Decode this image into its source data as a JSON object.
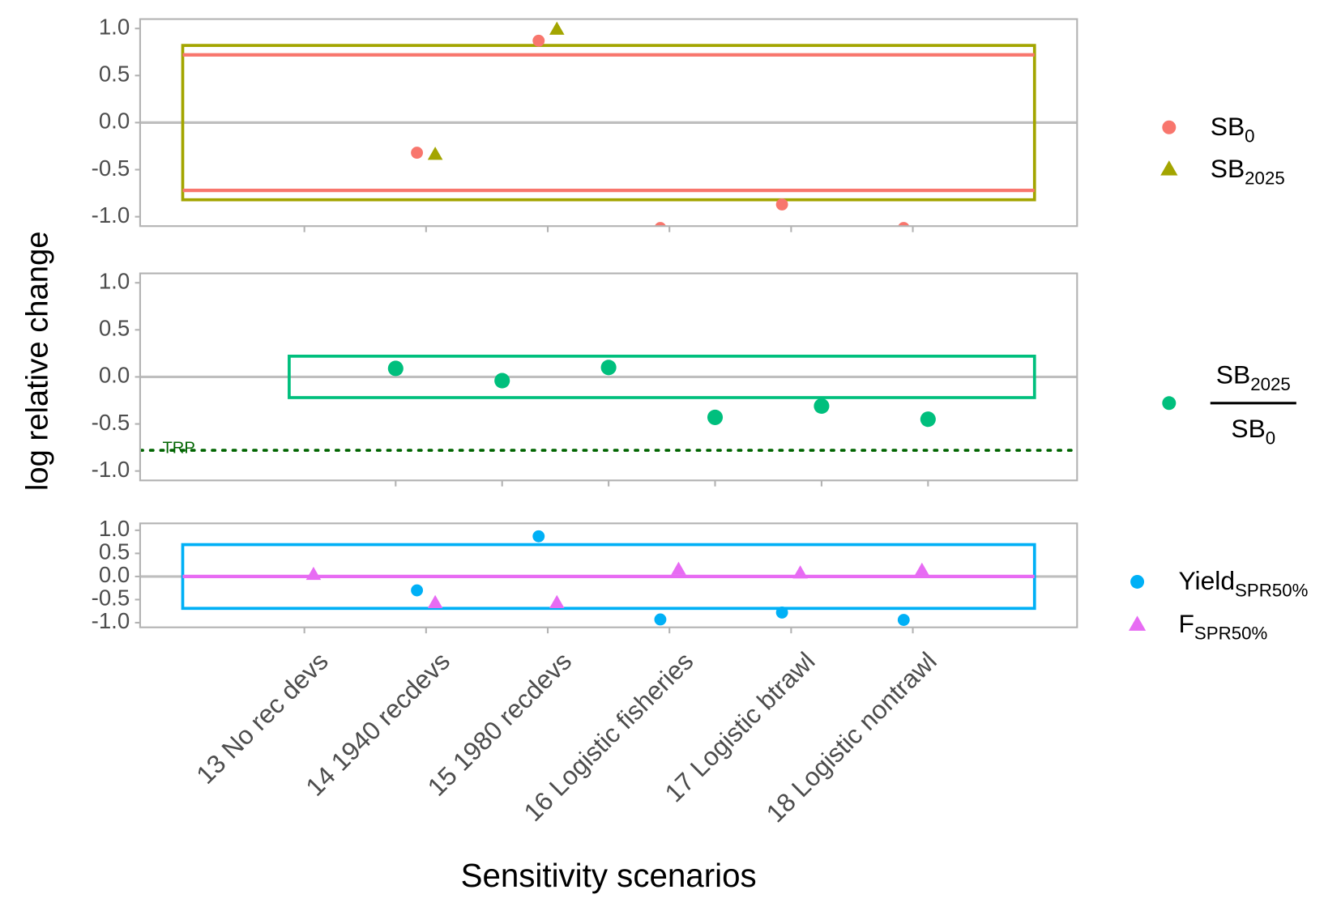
{
  "chart_data": [
    {
      "type": "scatter",
      "ylim": [
        -1.1,
        1.1
      ],
      "yticks": [
        {
          "value": 1,
          "label": "1.0"
        },
        0.5,
        {
          "value": 0,
          "label": "0.0"
        },
        -0.5,
        {
          "value": -1,
          "label": "-1.0"
        }
      ],
      "xlim": [
        -1.35,
        6.35
      ],
      "series": [
        {
          "name": "SB",
          "name_sub": "0",
          "color": "#F8766D",
          "marker": "circle",
          "values": [
            null,
            -0.32,
            0.87,
            -1.12,
            -0.87,
            -1.12
          ]
        },
        {
          "name": "SB",
          "name_sub": "2025",
          "color": "#A3A500",
          "marker": "triangle",
          "values": [
            null,
            -0.34,
            0.99,
            null,
            null,
            null
          ]
        }
      ],
      "bands": [
        {
          "x": [
            -1,
            6
          ],
          "y": [
            -0.82,
            0.82
          ],
          "color": "#A3A500"
        }
      ],
      "hlines": [
        {
          "y": 0.72,
          "color": "#F8766D"
        },
        {
          "y": -0.72,
          "color": "#F8766D"
        }
      ]
    },
    {
      "type": "scatter",
      "ylabel": "log relative change",
      "ylim": [
        -1.1,
        1.1
      ],
      "yticks": [
        {
          "value": 1,
          "label": "1.0"
        },
        0.5,
        {
          "value": 0,
          "label": "0.0"
        },
        -0.5,
        {
          "value": -1,
          "label": "-1.0"
        }
      ],
      "xlim": [
        -2.4,
        6.4
      ],
      "series": [
        {
          "name": "SB",
          "name_sub": "2025",
          "name_denominator": "SB",
          "name_denominator_sub": "0",
          "color": "#00BF7D",
          "marker": "circle",
          "values": [
            0.09,
            -0.04,
            0.1,
            -0.43,
            -0.31,
            -0.45
          ]
        }
      ],
      "bands": [
        {
          "x": [
            -1,
            6
          ],
          "y": [
            -0.22,
            0.22
          ],
          "color": "#00BF7D"
        }
      ],
      "hlines": [
        {
          "y": -0.78,
          "color": "#006400",
          "dash": "dotted",
          "label": "TRP"
        }
      ]
    },
    {
      "type": "scatter",
      "xlabel": "Sensitivity scenarios",
      "categories": [
        "13 No rec devs",
        "14 1940 recdevs",
        "15 1980 recdevs",
        "16 Logistic fisheries",
        "17 Logistic btrawl",
        "18 Logistic nontrawl"
      ],
      "ylim": [
        -1.1,
        1.15
      ],
      "yticks": [
        {
          "value": 1,
          "label": "1.0"
        },
        0.5,
        {
          "value": 0,
          "label": "0.0"
        },
        -0.5,
        {
          "value": -1,
          "label": "-1.0"
        }
      ],
      "xlim": [
        -1.35,
        6.35
      ],
      "series": [
        {
          "name": "Yield",
          "name_sub": "SPR50%",
          "color": "#00B0F6",
          "marker": "circle",
          "values": [
            null,
            -0.3,
            0.87,
            -0.93,
            -0.78,
            -0.94
          ]
        },
        {
          "name": "F",
          "name_sub": "SPR50%",
          "color": "#E76BF3",
          "marker": "triangle",
          "values": [
            0.04,
            -0.57,
            -0.57,
            0.15,
            0.07,
            0.13
          ]
        }
      ],
      "bands": [
        {
          "x": [
            -1,
            6
          ],
          "y": [
            -0.69,
            0.69
          ],
          "color": "#00B0F6"
        }
      ],
      "hlines": [
        {
          "y": 0,
          "color": "#E76BF3"
        }
      ]
    }
  ]
}
